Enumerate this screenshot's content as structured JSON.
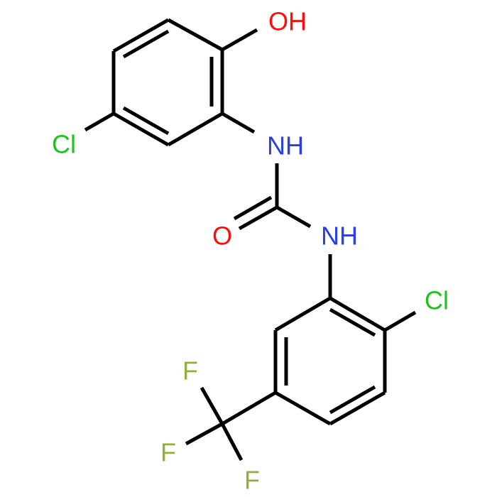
{
  "atoms": [
    "OH",
    "Cl",
    "NH",
    "O",
    "NH",
    "Cl",
    "F",
    "F",
    "F"
  ]
}
